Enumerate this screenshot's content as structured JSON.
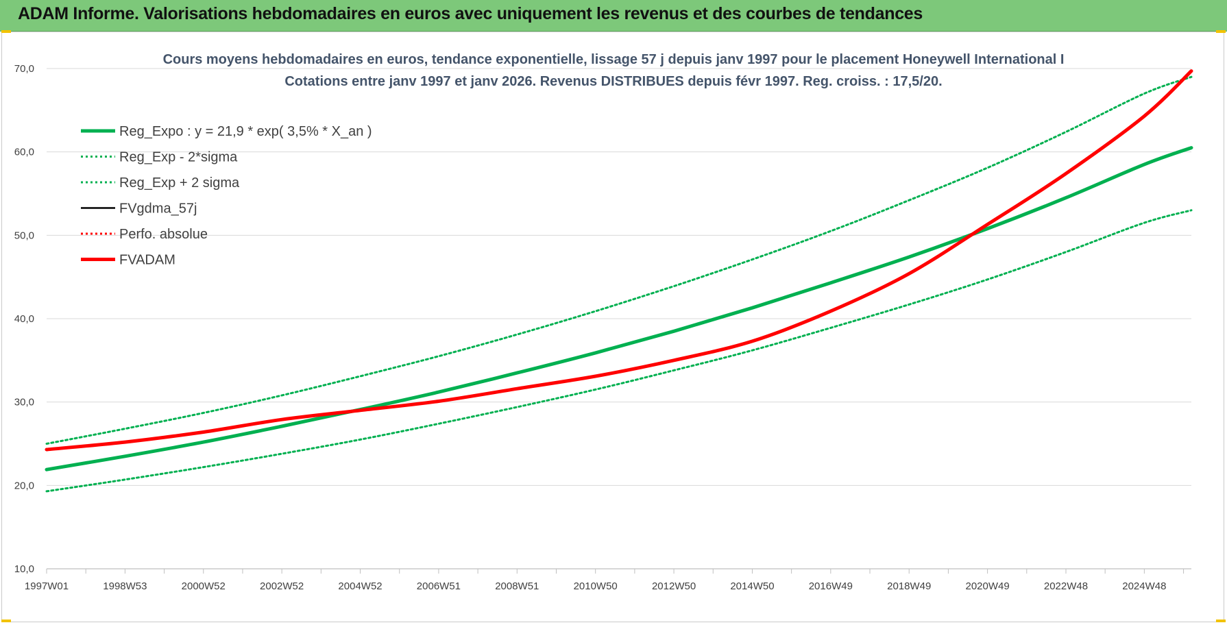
{
  "banner": {
    "title": "ADAM Informe. Valorisations hebdomadaires en euros avec uniquement les revenus et des courbes de tendances"
  },
  "chart_data": {
    "type": "line",
    "title_line1": "Cours moyens hebdomadaires en euros, tendance exponentielle, lissage 57 j depuis janv 1997 pour le placement Honeywell International I",
    "title_line2": "Cotations entre janv 1997 et janv 2026. Revenus DISTRIBUES depuis févr 1997. Reg. croiss. : 17,5/20.",
    "xlabel": "",
    "ylabel": "",
    "ylim": [
      10,
      70
    ],
    "y_ticks": [
      "10,0",
      "20,0",
      "30,0",
      "40,0",
      "50,0",
      "60,0",
      "70,0"
    ],
    "x_tick_labels": [
      "1997W01",
      "1998W53",
      "2000W52",
      "2002W52",
      "2004W52",
      "2006W51",
      "2008W51",
      "2010W50",
      "2012W50",
      "2014W50",
      "2016W49",
      "2018W49",
      "2020W49",
      "2022W48",
      "2024W48"
    ],
    "x_tick_years": [
      1997.0,
      1999.0,
      2001.0,
      2003.0,
      2005.0,
      2007.0,
      2009.0,
      2011.0,
      2013.0,
      2015.0,
      2017.0,
      2019.0,
      2021.0,
      2023.0,
      2025.0
    ],
    "x_range_years": [
      1997.0,
      2026.2
    ],
    "grid": true,
    "legend_position": "top-left",
    "series": [
      {
        "name": "Reg_Expo : y = 21,9 * exp( 3,5% *  X_an )",
        "color": "#00b050",
        "style": "solid-thick",
        "x": [
          1997,
          1999,
          2001,
          2003,
          2005,
          2007,
          2009,
          2011,
          2013,
          2015,
          2017,
          2019,
          2021,
          2023,
          2025,
          2026.2
        ],
        "values": [
          21.9,
          23.5,
          25.2,
          27.1,
          29.1,
          31.2,
          33.5,
          35.9,
          38.5,
          41.3,
          44.3,
          47.4,
          50.8,
          54.5,
          58.5,
          60.5
        ]
      },
      {
        "name": "Reg_Exp - 2*sigma",
        "color": "#00b050",
        "style": "dotted",
        "x": [
          1997,
          1999,
          2001,
          2003,
          2005,
          2007,
          2009,
          2011,
          2013,
          2015,
          2017,
          2019,
          2021,
          2023,
          2025,
          2026.2
        ],
        "values": [
          19.3,
          20.7,
          22.2,
          23.8,
          25.5,
          27.4,
          29.4,
          31.5,
          33.8,
          36.2,
          38.9,
          41.7,
          44.7,
          48.0,
          51.5,
          53.0
        ]
      },
      {
        "name": "Reg_Exp + 2 sigma",
        "color": "#00b050",
        "style": "dotted",
        "x": [
          1997,
          1999,
          2001,
          2003,
          2005,
          2007,
          2009,
          2011,
          2013,
          2015,
          2017,
          2019,
          2021,
          2023,
          2025,
          2026.2
        ],
        "values": [
          25.0,
          26.8,
          28.7,
          30.8,
          33.1,
          35.5,
          38.1,
          40.9,
          43.9,
          47.1,
          50.5,
          54.2,
          58.1,
          62.4,
          67.0,
          69.0
        ]
      },
      {
        "name": "FVgdma_57j",
        "color": "#000000",
        "style": "solid",
        "x": [
          1997,
          1999,
          2001,
          2003,
          2005,
          2007,
          2009,
          2011,
          2013,
          2015,
          2017,
          2019,
          2021,
          2023,
          2025,
          2026.2
        ],
        "values": [
          24.3,
          25.2,
          26.4,
          27.9,
          29.0,
          30.1,
          31.6,
          33.1,
          35.0,
          37.3,
          40.9,
          45.4,
          51.3,
          57.4,
          64.3,
          69.7
        ]
      },
      {
        "name": "Perfo. absolue",
        "color": "#ff0000",
        "style": "dotted",
        "x": [],
        "values": []
      },
      {
        "name": "FVADAM",
        "color": "#ff0000",
        "style": "solid-thick",
        "x": [
          1997,
          1999,
          2001,
          2003,
          2005,
          2007,
          2009,
          2011,
          2013,
          2015,
          2017,
          2019,
          2021,
          2023,
          2025,
          2026.2
        ],
        "values": [
          24.3,
          25.2,
          26.4,
          27.9,
          29.0,
          30.1,
          31.6,
          33.1,
          35.0,
          37.3,
          40.9,
          45.4,
          51.3,
          57.4,
          64.3,
          69.7
        ]
      }
    ]
  }
}
